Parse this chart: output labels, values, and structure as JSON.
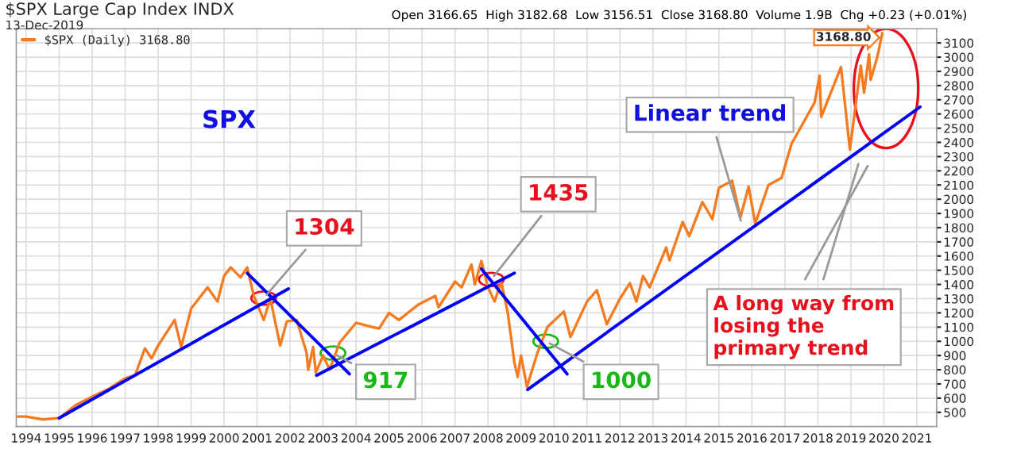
{
  "chart_data": {
    "type": "line",
    "title": "$SPX Large Cap Index INDX",
    "subtitle": "13-Dec-2019",
    "x": [
      1993.7,
      1994.0,
      1994.5,
      1995.0,
      1995.5,
      1996.0,
      1996.5,
      1997.0,
      1997.3,
      1997.6,
      1997.8,
      1998.0,
      1998.5,
      1998.7,
      1999.0,
      1999.5,
      1999.8,
      2000.0,
      2000.2,
      2000.5,
      2000.7,
      2000.9,
      2001.2,
      2001.4,
      2001.7,
      2001.9,
      2002.2,
      2002.5,
      2002.55,
      2002.7,
      2002.78,
      2003.0,
      2003.2,
      2003.5,
      2004.0,
      2004.5,
      2004.7,
      2005.0,
      2005.3,
      2005.9,
      2006.4,
      2006.5,
      2007.0,
      2007.2,
      2007.5,
      2007.6,
      2007.8,
      2008.0,
      2008.2,
      2008.4,
      2008.6,
      2008.8,
      2008.9,
      2009.0,
      2009.18,
      2009.5,
      2009.8,
      2010.3,
      2010.5,
      2011.0,
      2011.3,
      2011.6,
      2012.0,
      2012.3,
      2012.5,
      2012.7,
      2012.9,
      2013.4,
      2013.5,
      2013.9,
      2014.1,
      2014.5,
      2014.8,
      2015.0,
      2015.4,
      2015.65,
      2015.9,
      2016.1,
      2016.5,
      2016.9,
      2017.2,
      2017.9,
      2018.05,
      2018.1,
      2018.7,
      2018.97,
      2019.3,
      2019.4,
      2019.55,
      2019.6,
      2019.8,
      2019.95
    ],
    "series": [
      {
        "name": "$SPX (Daily) 3168.80",
        "color": "#f47b20",
        "values": [
          470,
          470,
          450,
          460,
          550,
          610,
          665,
          740,
          760,
          950,
          880,
          970,
          1150,
          960,
          1230,
          1380,
          1280,
          1460,
          1520,
          1450,
          1520,
          1320,
          1150,
          1300,
          970,
          1140,
          1150,
          920,
          800,
          960,
          780,
          900,
          800,
          990,
          1130,
          1100,
          1090,
          1200,
          1150,
          1260,
          1320,
          1240,
          1420,
          1380,
          1540,
          1400,
          1565,
          1380,
          1280,
          1420,
          1200,
          850,
          750,
          900,
          680,
          920,
          1100,
          1210,
          1030,
          1280,
          1360,
          1120,
          1300,
          1410,
          1280,
          1460,
          1380,
          1660,
          1570,
          1840,
          1740,
          1980,
          1860,
          2080,
          2130,
          1870,
          2090,
          1830,
          2100,
          2150,
          2390,
          2680,
          2870,
          2580,
          2930,
          2350,
          2940,
          2750,
          3020,
          2840,
          3000,
          3168.8
        ],
        "value_labels": [
          null,
          null,
          null,
          null,
          null,
          null,
          null,
          null,
          null,
          null,
          null,
          null,
          null,
          null,
          null,
          null,
          null,
          null,
          null,
          null,
          null,
          null,
          null,
          null,
          null,
          null,
          null,
          null,
          null,
          null,
          null,
          null,
          null,
          null,
          null,
          null,
          null,
          null,
          null,
          null,
          null,
          null,
          null,
          null,
          null,
          null,
          null,
          null,
          null,
          null,
          null,
          null,
          null,
          null,
          null,
          null,
          null,
          null,
          null,
          null,
          null,
          null,
          null,
          null,
          null,
          null,
          null,
          null,
          null,
          null,
          null,
          null,
          null,
          null,
          null,
          null,
          null,
          null,
          null,
          null,
          null,
          null,
          null,
          null,
          null,
          null,
          null,
          null,
          null,
          null,
          null,
          "3168.80"
        ]
      },
      {
        "type": "line",
        "color": "#0000ff",
        "x": [
          1995.0,
          2001.95
        ],
        "values": [
          460,
          1370
        ]
      },
      {
        "type": "line",
        "color": "#0000ff",
        "x": [
          2000.7,
          2003.8
        ],
        "values": [
          1480,
          770
        ]
      },
      {
        "type": "line",
        "color": "#0000ff",
        "x": [
          2002.8,
          2008.8
        ],
        "values": [
          760,
          1480
        ]
      },
      {
        "type": "line",
        "color": "#0000ff",
        "x": [
          2007.8,
          2010.4
        ],
        "values": [
          1510,
          770
        ]
      },
      {
        "type": "line",
        "color": "#0000ff",
        "x": [
          2009.2,
          2021.1
        ],
        "values": [
          660,
          2650
        ]
      }
    ],
    "xlim": [
      1993.7,
      2021.6
    ],
    "xticks": [
      {
        "value": 1994,
        "label": "1994"
      },
      {
        "value": 1995,
        "label": "1995"
      },
      {
        "value": 1996,
        "label": "1996"
      },
      {
        "value": 1997,
        "label": "1997"
      },
      {
        "value": 1998,
        "label": "1998"
      },
      {
        "value": 1999,
        "label": "1999"
      },
      {
        "value": 2000,
        "label": "2000"
      },
      {
        "value": 2001,
        "label": "2001"
      },
      {
        "value": 2002,
        "label": "2002"
      },
      {
        "value": 2003,
        "label": "2003"
      },
      {
        "value": 2004,
        "label": "2004"
      },
      {
        "value": 2005,
        "label": "2005"
      },
      {
        "value": 2006,
        "label": "2006"
      },
      {
        "value": 2007,
        "label": "2007"
      },
      {
        "value": 2008,
        "label": "2008"
      },
      {
        "value": 2009,
        "label": "2009"
      },
      {
        "value": 2010,
        "label": "2010"
      },
      {
        "value": 2011,
        "label": "2011"
      },
      {
        "value": 2012,
        "label": "2012"
      },
      {
        "value": 2013,
        "label": "2013"
      },
      {
        "value": 2014,
        "label": "2014"
      },
      {
        "value": 2015,
        "label": "2015"
      },
      {
        "value": 2016,
        "label": "2016"
      },
      {
        "value": 2017,
        "label": "2017"
      },
      {
        "value": 2018,
        "label": "2018"
      },
      {
        "value": 2019,
        "label": "2019"
      },
      {
        "value": 2020,
        "label": "2020"
      },
      {
        "value": 2021,
        "label": "2021"
      }
    ],
    "ylim": [
      400,
      3200
    ],
    "yticks": [
      500,
      600,
      700,
      800,
      900,
      1000,
      1100,
      1200,
      1300,
      1400,
      1500,
      1600,
      1700,
      1800,
      1900,
      2000,
      2100,
      2200,
      2300,
      2400,
      2500,
      2600,
      2700,
      2800,
      2900,
      3000,
      3100
    ],
    "grid": true,
    "legend": "top left",
    "marker": "none",
    "line_style": "solid",
    "annotations": [
      "Open 3166.65  High 3182.68  Low 3156.51  Close 3168.80  Volume 1.9B  Chg +0.23 (+0.01%)",
      "SPX",
      {
        "text": "1304",
        "x": 2001.2,
        "y": 1304
      },
      {
        "text": "917",
        "x": 2003.3,
        "y": 917
      },
      {
        "text": "1435",
        "x": 2008.1,
        "y": 1435
      },
      {
        "text": "1000",
        "x": 2009.75,
        "y": 1000
      },
      {
        "text": "Linear trend",
        "x": 2015.7,
        "y": 1820
      },
      "A long way from\nlosing the\nprimary trend"
    ]
  }
}
